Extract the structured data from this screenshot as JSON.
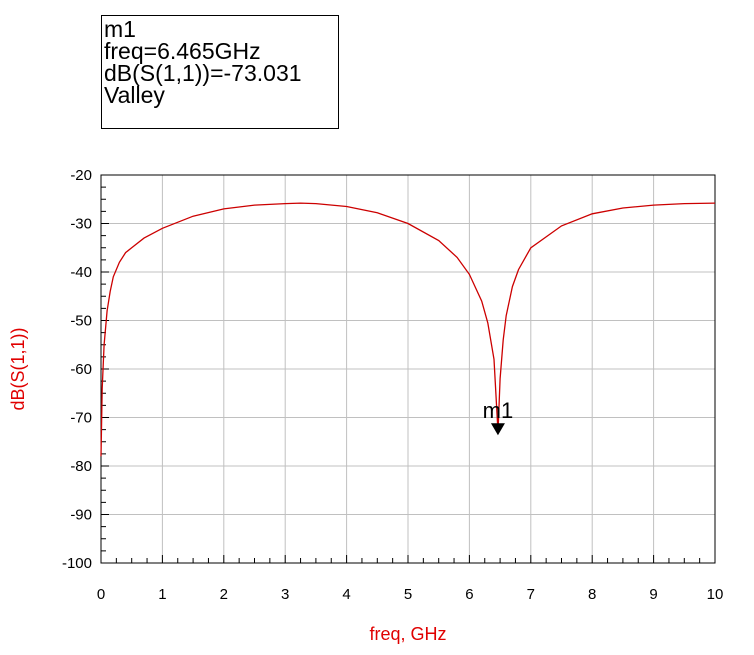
{
  "marker_readout": {
    "name": "m1",
    "freq_line": "freq=6.465GHz",
    "value_line": "dB(S(1,1))=-73.031",
    "mode": "Valley"
  },
  "colors": {
    "trace": "#cc0000",
    "axis_label": "#e00000",
    "grid": "#c0c0c0",
    "frame": "#000000"
  },
  "chart_data": {
    "type": "line",
    "title": "",
    "xlabel": "freq, GHz",
    "ylabel": "dB(S(1,1))",
    "xlim": [
      0,
      10
    ],
    "ylim": [
      -100,
      -20
    ],
    "xticks": [
      0,
      1,
      2,
      3,
      4,
      5,
      6,
      7,
      8,
      9,
      10
    ],
    "yticks": [
      -20,
      -30,
      -40,
      -50,
      -60,
      -70,
      -80,
      -90,
      -100
    ],
    "grid": true,
    "series": [
      {
        "x": [
          0.0,
          0.02,
          0.05,
          0.1,
          0.15,
          0.2,
          0.3,
          0.4,
          0.5,
          0.7,
          1.0,
          1.5,
          2.0,
          2.5,
          3.0,
          3.25,
          3.5,
          4.0,
          4.5,
          5.0,
          5.5,
          5.8,
          6.0,
          6.2,
          6.3,
          6.4,
          6.465,
          6.5,
          6.55,
          6.6,
          6.7,
          6.8,
          7.0,
          7.5,
          8.0,
          8.5,
          9.0,
          9.5,
          10.0
        ],
        "y": [
          -78.0,
          -64.0,
          -55.0,
          -48.0,
          -44.0,
          -41.0,
          -38.0,
          -36.0,
          -35.0,
          -33.0,
          -31.0,
          -28.5,
          -27.0,
          -26.2,
          -25.9,
          -25.8,
          -25.9,
          -26.5,
          -27.8,
          -30.0,
          -33.5,
          -37.0,
          -40.5,
          -46.0,
          -50.5,
          -58.0,
          -73.0,
          -62.0,
          -54.0,
          -49.0,
          -43.0,
          -39.5,
          -35.0,
          -30.5,
          -28.0,
          -26.8,
          -26.2,
          -25.9,
          -25.8
        ]
      }
    ],
    "markers": [
      {
        "label": "m1",
        "x": 6.465,
        "y": -73.031
      }
    ]
  }
}
